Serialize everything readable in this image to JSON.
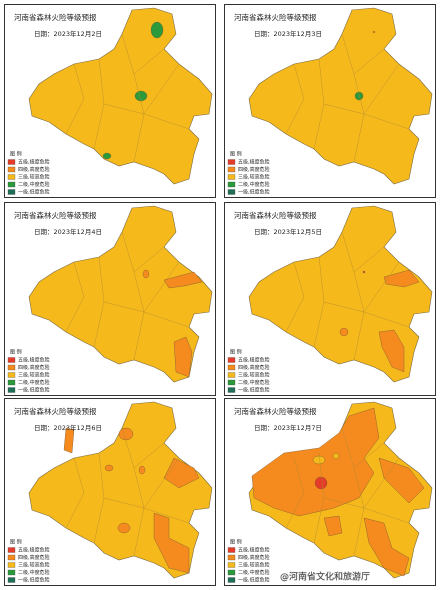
{
  "panels": [
    {
      "title": "河南省森林火险等级预报",
      "date": "日期：2023年12月2日"
    },
    {
      "title": "河南省森林火险等级预报",
      "date": "日期：2023年12月3日"
    },
    {
      "title": "河南省森林火险等级预报",
      "date": "日期：2023年12月4日"
    },
    {
      "title": "河南省森林火险等级预报",
      "date": "日期：2023年12月5日"
    },
    {
      "title": "河南省森林火险等级预报",
      "date": "日期：2023年12月6日"
    },
    {
      "title": "河南省森林火险等级预报",
      "date": "日期：2023年12月7日"
    }
  ],
  "legend": {
    "title": "图 例",
    "items": [
      {
        "label": "五级,极度危险",
        "color": "#e53c2a"
      },
      {
        "label": "四级,高度危险",
        "color": "#f58a1f"
      },
      {
        "label": "三级,较高危险",
        "color": "#f6b91c"
      },
      {
        "label": "二级,中度危险",
        "color": "#2a9a3a"
      },
      {
        "label": "一级,低度危险",
        "color": "#1f6f58"
      }
    ]
  },
  "watermark": "@河南省文化和旅游厅"
}
